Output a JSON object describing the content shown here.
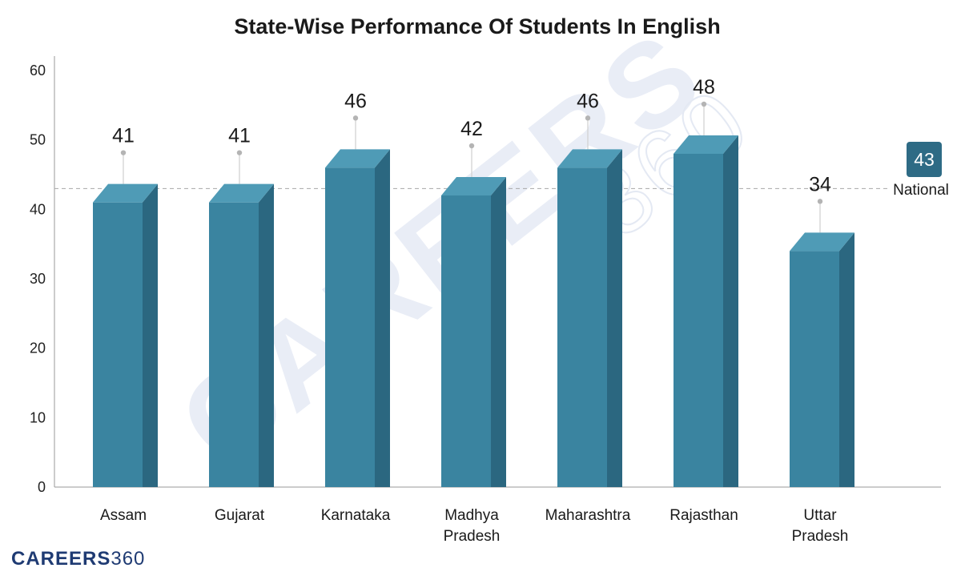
{
  "chart_data": {
    "type": "bar",
    "title": "State-Wise Performance Of Students In English",
    "categories": [
      [
        "Assam"
      ],
      [
        "Gujarat"
      ],
      [
        "Karnataka"
      ],
      [
        "Madhya",
        "Pradesh"
      ],
      [
        "Maharashtra"
      ],
      [
        "Rajasthan"
      ],
      [
        "Uttar",
        "Pradesh"
      ]
    ],
    "values": [
      41,
      41,
      46,
      42,
      46,
      48,
      34
    ],
    "value_labels": [
      "41",
      "41",
      "46",
      "42",
      "46",
      "48",
      "34"
    ],
    "ylim": [
      0,
      60
    ],
    "yticks": [
      "0",
      "10",
      "20",
      "30",
      "40",
      "50",
      "60"
    ],
    "ytick_values": [
      0,
      10,
      20,
      30,
      40,
      50,
      60
    ],
    "xlabel": "",
    "ylabel": "",
    "grid": false,
    "legend": "none",
    "reference_line": {
      "value": 43,
      "value_label": "43",
      "label": "National"
    },
    "colors": {
      "bar_front": "#3a84a0",
      "bar_top": "#4f9bb6",
      "bar_side": "#2b6780",
      "badge": "#2e6b85",
      "axis": "#9a9a9a",
      "ref_line": "#a8a8a8",
      "pin": "#b4b4b4"
    }
  },
  "branding": {
    "logo_word": "CAREERS",
    "logo_number": "360",
    "watermark_word": "CAREERS",
    "watermark_number": "360"
  }
}
